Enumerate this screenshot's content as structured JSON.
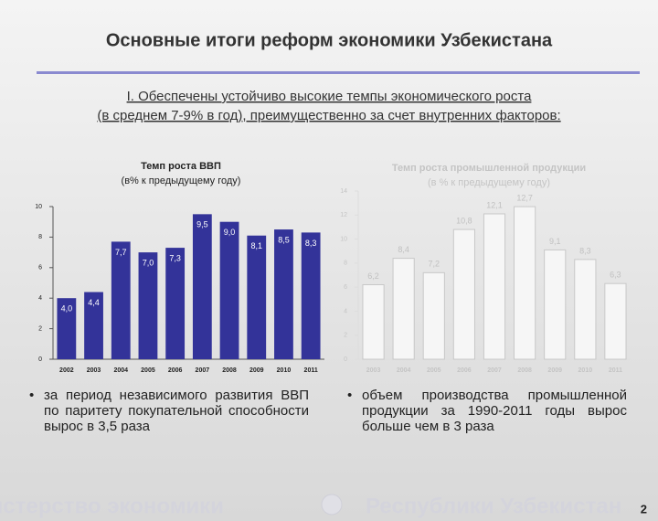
{
  "title": "Основные итоги реформ экономики Узбекистана",
  "subtitle": [
    "I. Обеспечены устойчиво высокие темпы экономического роста",
    "(в среднем 7-9% в год), преимущественно за счет внутренних факторов:"
  ],
  "chart_data": [
    {
      "type": "bar",
      "title": [
        "Темп роста ВВП",
        "(в% к предыдущему году)"
      ],
      "categories": [
        "2002",
        "2003",
        "2004",
        "2005",
        "2006",
        "2007",
        "2008",
        "2009",
        "2010",
        "2011"
      ],
      "values": [
        4.0,
        4.4,
        7.7,
        7.0,
        7.3,
        9.5,
        9.0,
        8.1,
        8.5,
        8.3
      ],
      "value_labels": [
        "4,0",
        "4,4",
        "7,7",
        "7,0",
        "7,3",
        "9,5",
        "9,0",
        "8,1",
        "8,5",
        "8,3"
      ],
      "color": "#333399",
      "ylim": [
        0,
        10
      ],
      "yticks": [
        0,
        2,
        4,
        6,
        8,
        10
      ]
    },
    {
      "type": "bar",
      "title": [
        "Темп роста промышленной продукции",
        "(в % к предыдущему году)"
      ],
      "categories": [
        "2003",
        "2004",
        "2005",
        "2006",
        "2007",
        "2008",
        "2009",
        "2010",
        "2011"
      ],
      "values": [
        6.2,
        8.4,
        7.2,
        10.8,
        12.1,
        12.7,
        9.1,
        8.3,
        6.3
      ],
      "value_labels": [
        "6,2",
        "8,4",
        "7,2",
        "10,8",
        "12,1",
        "12,7",
        "9,1",
        "8,3",
        "6,3"
      ],
      "color": "#f6f6f6",
      "ylim": [
        0,
        14
      ],
      "yticks": [
        0,
        2,
        4,
        6,
        8,
        10,
        12,
        14
      ]
    }
  ],
  "bullets": [
    "за период независимого развития ВВП по паритету покупательной способности вырос в 3,5 раза",
    "объем производства промышленной продукции за 1990-2011 годы вырос больше чем в 3 раза"
  ],
  "footer": [
    "Министерство экономики",
    "Республики Узбекистан"
  ],
  "page_number": "2"
}
